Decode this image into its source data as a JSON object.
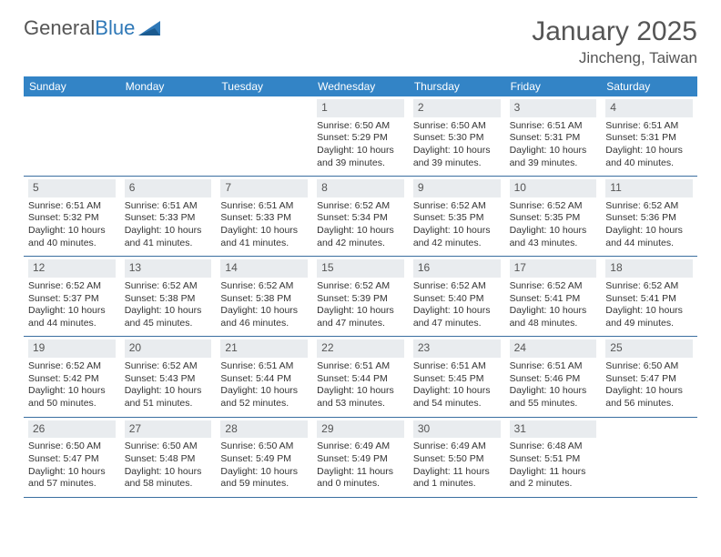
{
  "logo": {
    "text1": "General",
    "text2": "Blue"
  },
  "title": "January 2025",
  "location": "Jincheng, Taiwan",
  "weekdays": [
    "Sunday",
    "Monday",
    "Tuesday",
    "Wednesday",
    "Thursday",
    "Friday",
    "Saturday"
  ],
  "colors": {
    "header_bar": "#3384c6",
    "day_header_bg": "#e9ecef",
    "week_border": "#3a6fa0",
    "logo_blue": "#2f78b7",
    "text_gray": "#555555"
  },
  "weeks": [
    [
      {
        "empty": true
      },
      {
        "empty": true
      },
      {
        "empty": true
      },
      {
        "num": "1",
        "sunrise": "6:50 AM",
        "sunset": "5:29 PM",
        "dayh": "10",
        "daym": "39"
      },
      {
        "num": "2",
        "sunrise": "6:50 AM",
        "sunset": "5:30 PM",
        "dayh": "10",
        "daym": "39"
      },
      {
        "num": "3",
        "sunrise": "6:51 AM",
        "sunset": "5:31 PM",
        "dayh": "10",
        "daym": "39"
      },
      {
        "num": "4",
        "sunrise": "6:51 AM",
        "sunset": "5:31 PM",
        "dayh": "10",
        "daym": "40"
      }
    ],
    [
      {
        "num": "5",
        "sunrise": "6:51 AM",
        "sunset": "5:32 PM",
        "dayh": "10",
        "daym": "40"
      },
      {
        "num": "6",
        "sunrise": "6:51 AM",
        "sunset": "5:33 PM",
        "dayh": "10",
        "daym": "41"
      },
      {
        "num": "7",
        "sunrise": "6:51 AM",
        "sunset": "5:33 PM",
        "dayh": "10",
        "daym": "41"
      },
      {
        "num": "8",
        "sunrise": "6:52 AM",
        "sunset": "5:34 PM",
        "dayh": "10",
        "daym": "42"
      },
      {
        "num": "9",
        "sunrise": "6:52 AM",
        "sunset": "5:35 PM",
        "dayh": "10",
        "daym": "42"
      },
      {
        "num": "10",
        "sunrise": "6:52 AM",
        "sunset": "5:35 PM",
        "dayh": "10",
        "daym": "43"
      },
      {
        "num": "11",
        "sunrise": "6:52 AM",
        "sunset": "5:36 PM",
        "dayh": "10",
        "daym": "44"
      }
    ],
    [
      {
        "num": "12",
        "sunrise": "6:52 AM",
        "sunset": "5:37 PM",
        "dayh": "10",
        "daym": "44"
      },
      {
        "num": "13",
        "sunrise": "6:52 AM",
        "sunset": "5:38 PM",
        "dayh": "10",
        "daym": "45"
      },
      {
        "num": "14",
        "sunrise": "6:52 AM",
        "sunset": "5:38 PM",
        "dayh": "10",
        "daym": "46"
      },
      {
        "num": "15",
        "sunrise": "6:52 AM",
        "sunset": "5:39 PM",
        "dayh": "10",
        "daym": "47"
      },
      {
        "num": "16",
        "sunrise": "6:52 AM",
        "sunset": "5:40 PM",
        "dayh": "10",
        "daym": "47"
      },
      {
        "num": "17",
        "sunrise": "6:52 AM",
        "sunset": "5:41 PM",
        "dayh": "10",
        "daym": "48"
      },
      {
        "num": "18",
        "sunrise": "6:52 AM",
        "sunset": "5:41 PM",
        "dayh": "10",
        "daym": "49"
      }
    ],
    [
      {
        "num": "19",
        "sunrise": "6:52 AM",
        "sunset": "5:42 PM",
        "dayh": "10",
        "daym": "50"
      },
      {
        "num": "20",
        "sunrise": "6:52 AM",
        "sunset": "5:43 PM",
        "dayh": "10",
        "daym": "51"
      },
      {
        "num": "21",
        "sunrise": "6:51 AM",
        "sunset": "5:44 PM",
        "dayh": "10",
        "daym": "52"
      },
      {
        "num": "22",
        "sunrise": "6:51 AM",
        "sunset": "5:44 PM",
        "dayh": "10",
        "daym": "53"
      },
      {
        "num": "23",
        "sunrise": "6:51 AM",
        "sunset": "5:45 PM",
        "dayh": "10",
        "daym": "54"
      },
      {
        "num": "24",
        "sunrise": "6:51 AM",
        "sunset": "5:46 PM",
        "dayh": "10",
        "daym": "55"
      },
      {
        "num": "25",
        "sunrise": "6:50 AM",
        "sunset": "5:47 PM",
        "dayh": "10",
        "daym": "56"
      }
    ],
    [
      {
        "num": "26",
        "sunrise": "6:50 AM",
        "sunset": "5:47 PM",
        "dayh": "10",
        "daym": "57"
      },
      {
        "num": "27",
        "sunrise": "6:50 AM",
        "sunset": "5:48 PM",
        "dayh": "10",
        "daym": "58"
      },
      {
        "num": "28",
        "sunrise": "6:50 AM",
        "sunset": "5:49 PM",
        "dayh": "10",
        "daym": "59"
      },
      {
        "num": "29",
        "sunrise": "6:49 AM",
        "sunset": "5:49 PM",
        "dayh": "11",
        "daym": "0"
      },
      {
        "num": "30",
        "sunrise": "6:49 AM",
        "sunset": "5:50 PM",
        "dayh": "11",
        "daym": "1"
      },
      {
        "num": "31",
        "sunrise": "6:48 AM",
        "sunset": "5:51 PM",
        "dayh": "11",
        "daym": "2"
      },
      {
        "empty": true
      }
    ]
  ]
}
